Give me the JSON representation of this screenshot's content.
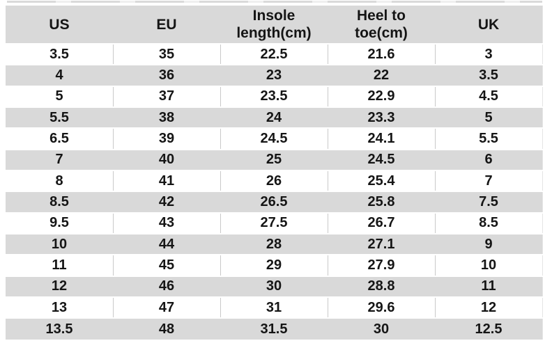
{
  "chart_data": {
    "type": "table",
    "columns": [
      {
        "lines": [
          "US"
        ]
      },
      {
        "lines": [
          "EU"
        ]
      },
      {
        "lines": [
          "Insole",
          "length(cm)"
        ]
      },
      {
        "lines": [
          "Heel to",
          "toe(cm)"
        ]
      },
      {
        "lines": [
          "UK"
        ]
      }
    ],
    "rows": [
      [
        "3.5",
        "35",
        "22.5",
        "21.6",
        "3"
      ],
      [
        "4",
        "36",
        "23",
        "22",
        "3.5"
      ],
      [
        "5",
        "37",
        "23.5",
        "22.9",
        "4.5"
      ],
      [
        "5.5",
        "38",
        "24",
        "23.3",
        "5"
      ],
      [
        "6.5",
        "39",
        "24.5",
        "24.1",
        "5.5"
      ],
      [
        "7",
        "40",
        "25",
        "24.5",
        "6"
      ],
      [
        "8",
        "41",
        "26",
        "25.4",
        "7"
      ],
      [
        "8.5",
        "42",
        "26.5",
        "25.8",
        "7.5"
      ],
      [
        "9.5",
        "43",
        "27.5",
        "26.7",
        "8.5"
      ],
      [
        "10",
        "44",
        "28",
        "27.1",
        "9"
      ],
      [
        "11",
        "45",
        "29",
        "27.9",
        "10"
      ],
      [
        "12",
        "46",
        "30",
        "28.8",
        "11"
      ],
      [
        "13",
        "47",
        "31",
        "29.6",
        "12"
      ],
      [
        "13.5",
        "48",
        "31.5",
        "30",
        "12.5"
      ]
    ],
    "layout": {
      "striped": true,
      "first_data_row": "white",
      "header_rows": 1,
      "grid": "vertical-lines-on-white-rows"
    },
    "colors": {
      "header_bg": "#d9d9d9",
      "stripe_bg": "#d9d9d9",
      "row_bg": "#ffffff",
      "text": "#151515",
      "grid_line": "#c9c9c9"
    }
  }
}
